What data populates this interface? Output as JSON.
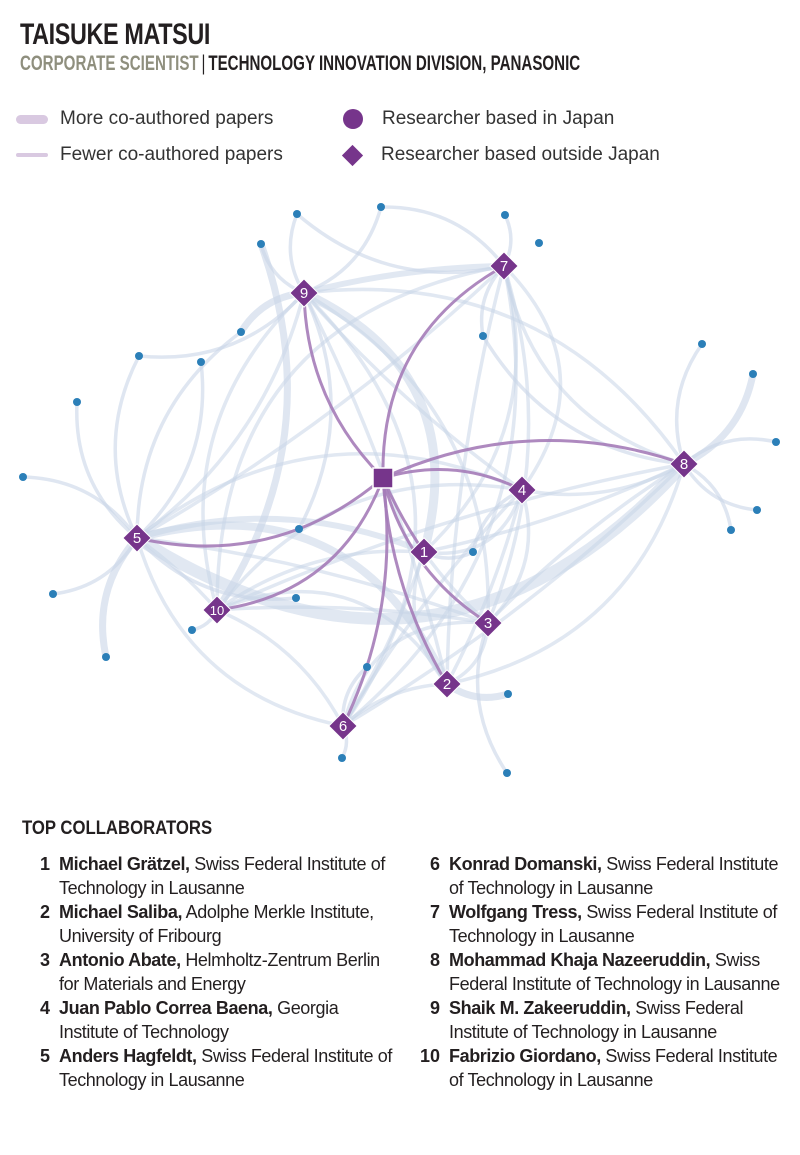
{
  "header": {
    "title": "TAISUKE MATSUI",
    "role": "CORPORATE SCIENTIST",
    "separator": "|",
    "organization": "TECHNOLOGY INNOVATION DIVISION, PANASONIC"
  },
  "legend": {
    "more_papers": "More co-authored papers",
    "fewer_papers": "Fewer co-authored papers",
    "japan": "Researcher based in Japan",
    "outside_japan": "Researcher based outside Japan"
  },
  "colors": {
    "primary_node": "#76358b",
    "primary_edge": "#a57cb8",
    "other_edge": "#c9d6e8",
    "other_node": "#2b7fb8",
    "role_text": "#8f8f7e"
  },
  "network": {
    "center": "Taisuke Matsui",
    "collaborator_labels": [
      "1",
      "2",
      "3",
      "4",
      "5",
      "6",
      "7",
      "8",
      "9",
      "10"
    ]
  },
  "collaborators": {
    "title": "TOP COLLABORATORS",
    "items": [
      {
        "rank": "1",
        "name": "Michael Grätzel,",
        "affiliation": "Swiss Federal Institute of Technology in Lausanne"
      },
      {
        "rank": "2",
        "name": "Michael Saliba,",
        "affiliation": "Adolphe Merkle Institute, University of Fribourg"
      },
      {
        "rank": "3",
        "name": "Antonio Abate,",
        "affiliation": "Helmholtz-Zentrum Berlin for Materials and Energy"
      },
      {
        "rank": "4",
        "name": "Juan Pablo Correa Baena,",
        "affiliation": "Georgia Institute of Technology"
      },
      {
        "rank": "5",
        "name": "Anders Hagfeldt,",
        "affiliation": "Swiss Federal Institute of Technology in Lausanne"
      },
      {
        "rank": "6",
        "name": "Konrad Domanski,",
        "affiliation": "Swiss Federal Institute of Technology in Lausanne"
      },
      {
        "rank": "7",
        "name": "Wolfgang Tress,",
        "affiliation": "Swiss Federal Institute of Technology in Lausanne"
      },
      {
        "rank": "8",
        "name": "Mohammad Khaja Nazeeruddin,",
        "affiliation": "Swiss Federal Institute of Technology in Lausanne"
      },
      {
        "rank": "9",
        "name": "Shaik M. Zakeeruddin,",
        "affiliation": "Swiss Federal Institute of Technology in Lausanne"
      },
      {
        "rank": "10",
        "name": "Fabrizio Giordano,",
        "affiliation": "Swiss Federal Institute of Technology in Lausanne"
      }
    ]
  }
}
